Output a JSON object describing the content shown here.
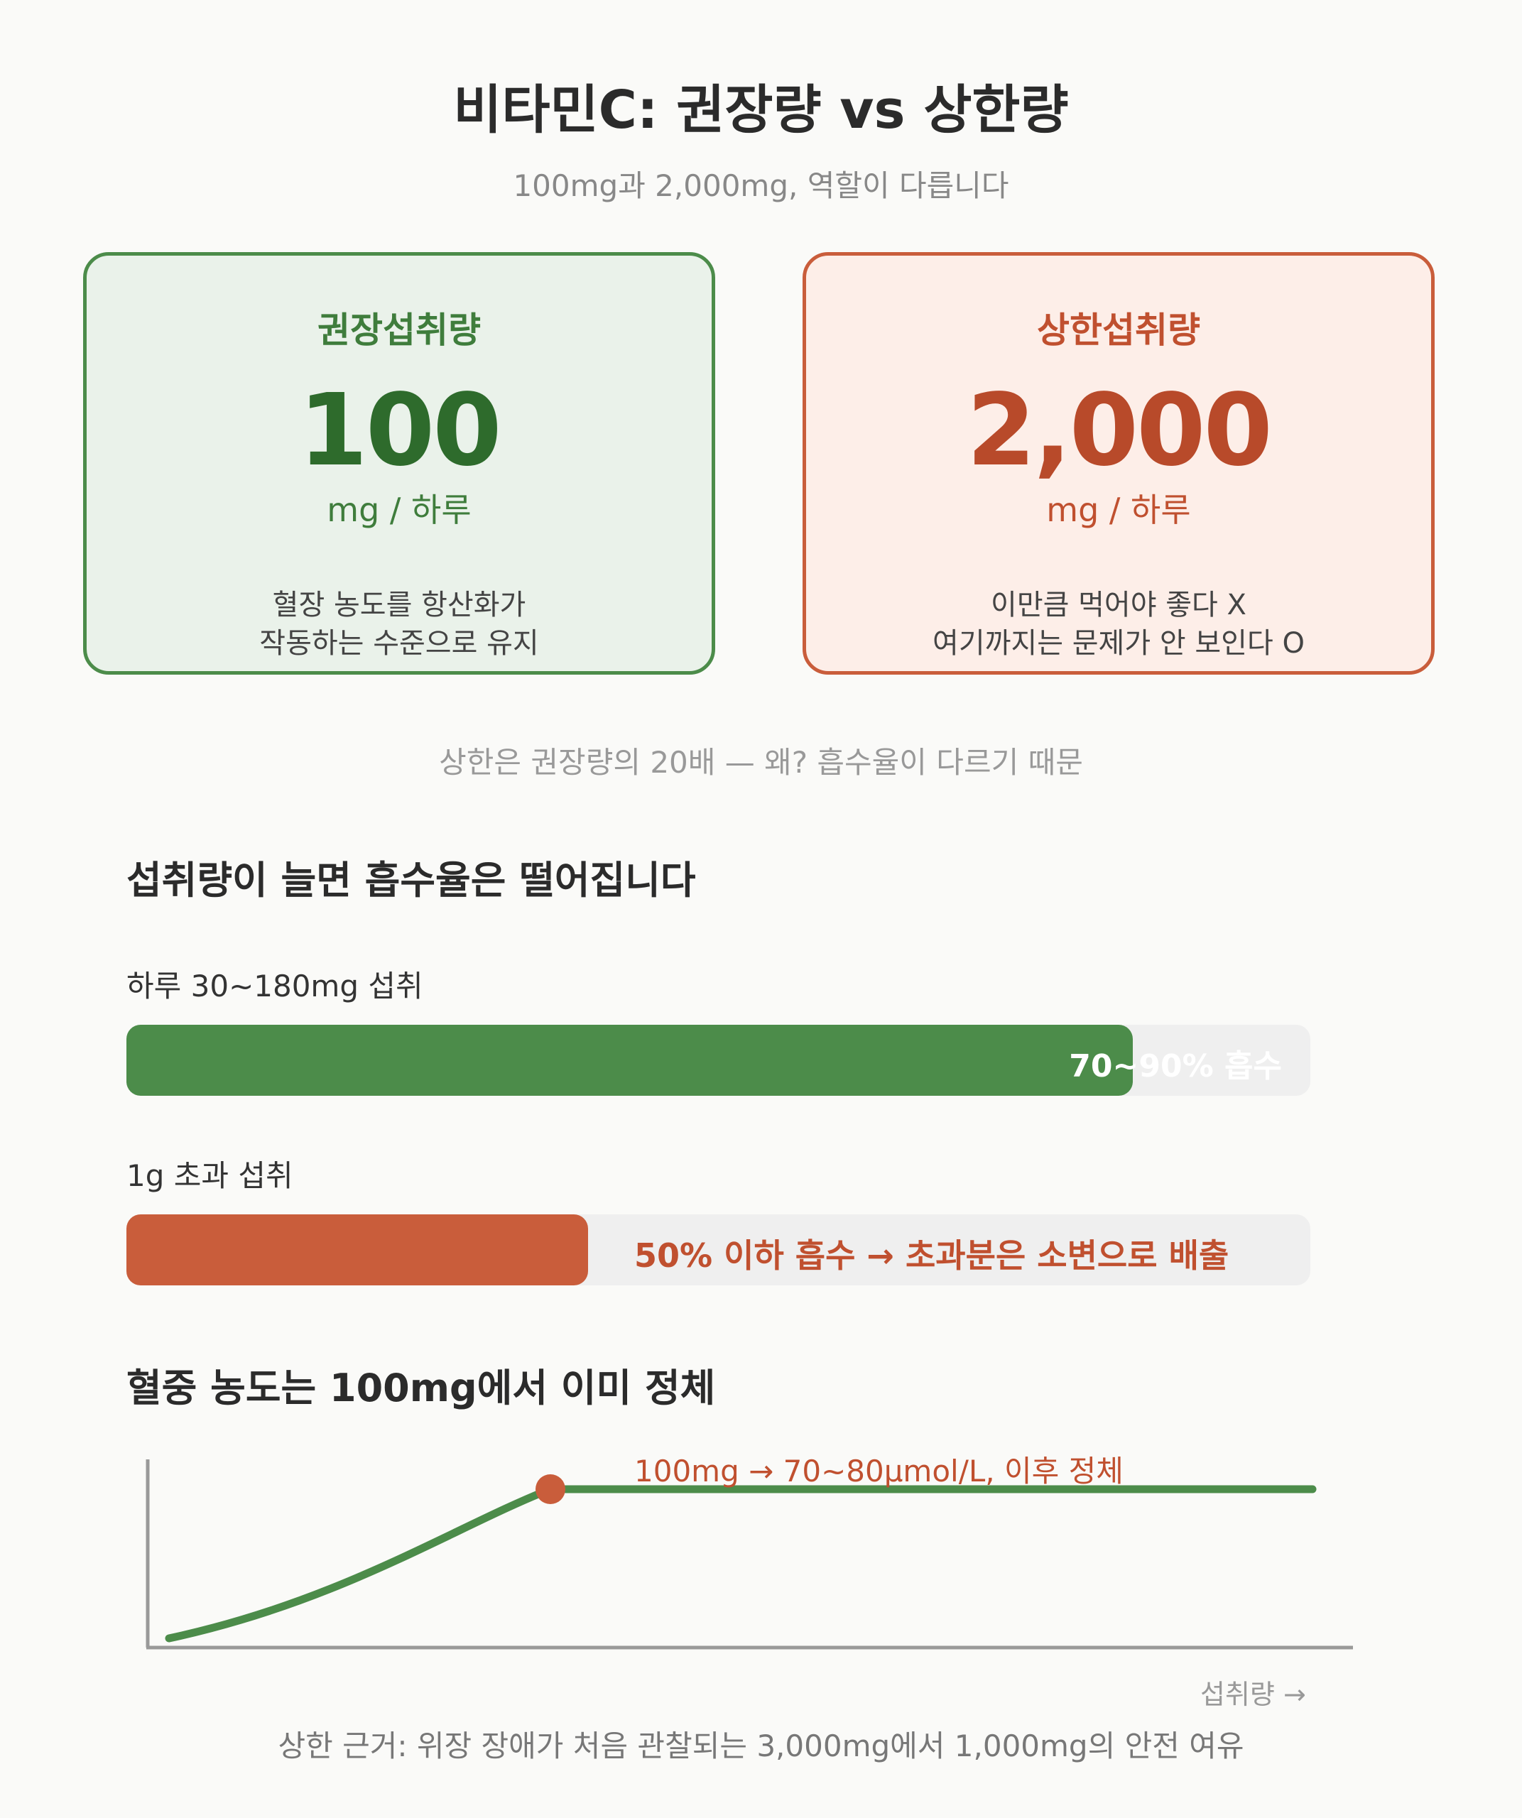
{
  "header": {
    "title": "비타민C: 권장량 vs 상한량",
    "subtitle": "100mg과 2,000mg, 역할이 다릅니다"
  },
  "cards": {
    "recommended": {
      "label": "권장섭취량",
      "value": "100",
      "unit": "mg / 하루",
      "desc_line1": "혈장 농도를 항산화가",
      "desc_line2": "작동하는 수준으로 유지"
    },
    "upper": {
      "label": "상한섭취량",
      "value": "2,000",
      "unit": "mg / 하루",
      "desc_line1": "이만큼 먹어야 좋다 X",
      "desc_line2": "여기까지는 문제가 안 보인다 O"
    }
  },
  "ratio_note": "상한은 권장량의 20배 — 왜? 흡수율이 다르기 때문",
  "absorption": {
    "title": "섭취량이 늘면 흡수율은 떨어집니다",
    "rows": [
      {
        "label": "하루 30~180mg 섭취",
        "bar_text": "70~90% 흡수",
        "fill_fraction": 0.85
      },
      {
        "label": "1g 초과 섭취",
        "bar_text": "50% 이하 흡수 → 초과분은 소변으로 배출",
        "fill_fraction": 0.39
      }
    ]
  },
  "plateau": {
    "title": "혈중 농도는 100mg에서 이미 정체",
    "point_label": "100mg → 70~80μmol/L, 이후 정체",
    "x_axis_label": "섭취량 →"
  },
  "footnote": "상한 근거: 위장 장애가 처음 관찰되는 3,000mg에서 1,000mg의 안전 여유",
  "colors": {
    "green": "#4c8c4a",
    "red": "#c95d3b",
    "green_bg": "#eaf2ea",
    "red_bg": "#fdeee8"
  }
}
